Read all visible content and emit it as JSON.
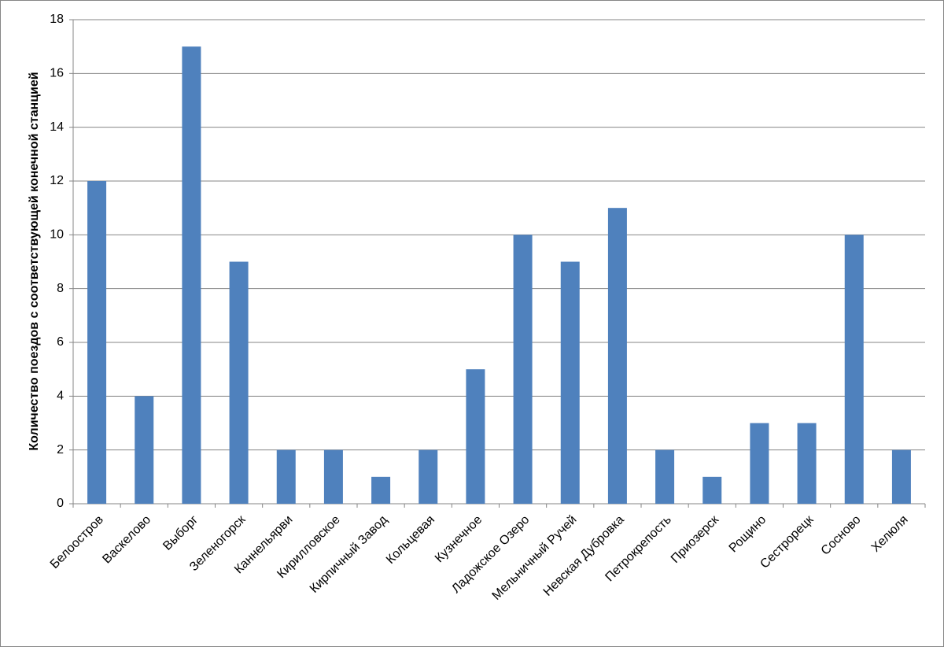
{
  "chart_data": {
    "type": "bar",
    "y_label": "Количество поездов с соответствующей конечной станцией",
    "categories": [
      "Белоостров",
      "Васкелово",
      "Выборг",
      "Зеленогорск",
      "Каннельярви",
      "Кирилловское",
      "Кирпичный Завод",
      "Кольцевая",
      "Кузнечное",
      "Ладожское Озеро",
      "Мельничный Ручей",
      "Невская Дубровка",
      "Петрокрепость",
      "Приозерск",
      "Рощино",
      "Сестрорецк",
      "Сосново",
      "Хелюля"
    ],
    "values": [
      12,
      4,
      17,
      9,
      2,
      2,
      1,
      2,
      5,
      10,
      9,
      11,
      2,
      1,
      3,
      3,
      10,
      2
    ],
    "color": "#4f81bd",
    "ylim": [
      0,
      18
    ],
    "yticks": [
      0,
      2,
      4,
      6,
      8,
      10,
      12,
      14,
      16,
      18
    ],
    "grid": true
  }
}
